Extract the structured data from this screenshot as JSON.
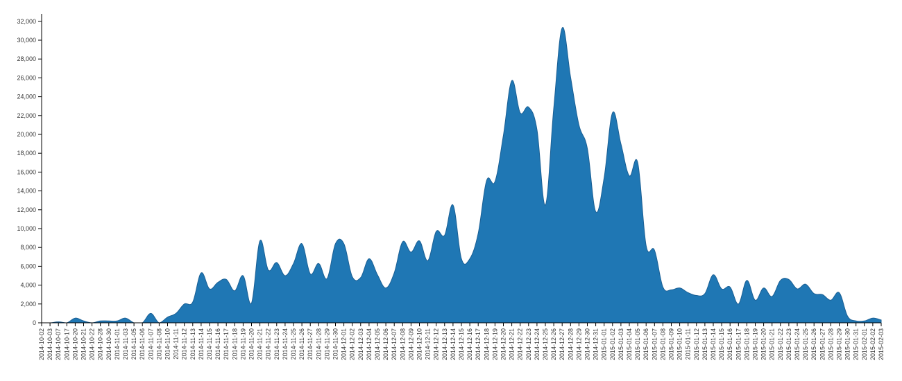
{
  "chart_data": {
    "type": "area",
    "title": "",
    "xlabel": "",
    "ylabel": "",
    "ylim": [
      0,
      32500
    ],
    "y_ticks": [
      0,
      2000,
      4000,
      6000,
      8000,
      10000,
      12000,
      14000,
      16000,
      18000,
      20000,
      22000,
      24000,
      26000,
      28000,
      30000,
      32000
    ],
    "y_tick_labels": [
      "0",
      "2,000",
      "4,000",
      "6,000",
      "8,000",
      "10,000",
      "12,000",
      "14,000",
      "16,000",
      "18,000",
      "20,000",
      "22,000",
      "24,000",
      "26,000",
      "28,000",
      "30,000",
      "32,000"
    ],
    "color": "#1f77b4",
    "grid": false,
    "x": [
      "2014-10-02",
      "2014-10-03",
      "2014-10-07",
      "2014-10-17",
      "2014-10-20",
      "2014-10-21",
      "2014-10-22",
      "2014-10-28",
      "2014-10-30",
      "2014-11-01",
      "2014-11-03",
      "2014-11-05",
      "2014-11-06",
      "2014-11-07",
      "2014-11-08",
      "2014-11-10",
      "2014-11-11",
      "2014-11-12",
      "2014-11-13",
      "2014-11-14",
      "2014-11-15",
      "2014-11-16",
      "2014-11-17",
      "2014-11-18",
      "2014-11-19",
      "2014-11-20",
      "2014-11-21",
      "2014-11-22",
      "2014-11-23",
      "2014-11-24",
      "2014-11-25",
      "2014-11-26",
      "2014-11-27",
      "2014-11-28",
      "2014-11-29",
      "2014-11-30",
      "2014-12-01",
      "2014-12-02",
      "2014-12-03",
      "2014-12-04",
      "2014-12-05",
      "2014-12-06",
      "2014-12-07",
      "2014-12-08",
      "2014-12-09",
      "2014-12-10",
      "2014-12-11",
      "2014-12-12",
      "2014-12-13",
      "2014-12-14",
      "2014-12-15",
      "2014-12-16",
      "2014-12-17",
      "2014-12-18",
      "2014-12-19",
      "2014-12-20",
      "2014-12-21",
      "2014-12-22",
      "2014-12-23",
      "2014-12-24",
      "2014-12-25",
      "2014-12-26",
      "2014-12-27",
      "2014-12-28",
      "2014-12-29",
      "2014-12-30",
      "2014-12-31",
      "2015-01-01",
      "2015-01-02",
      "2015-01-03",
      "2015-01-04",
      "2015-01-05",
      "2015-01-06",
      "2015-01-07",
      "2015-01-08",
      "2015-01-09",
      "2015-01-10",
      "2015-01-11",
      "2015-01-12",
      "2015-01-13",
      "2015-01-14",
      "2015-01-15",
      "2015-01-16",
      "2015-01-17",
      "2015-01-18",
      "2015-01-19",
      "2015-01-20",
      "2015-01-21",
      "2015-01-22",
      "2015-01-23",
      "2015-01-24",
      "2015-01-25",
      "2015-01-26",
      "2015-01-27",
      "2015-01-28",
      "2015-01-29",
      "2015-01-30",
      "2015-01-31",
      "2015-02-01",
      "2015-02-02",
      "2015-02-03"
    ],
    "values": [
      0,
      0,
      100,
      0,
      500,
      200,
      0,
      200,
      200,
      200,
      500,
      0,
      0,
      1000,
      0,
      600,
      1000,
      2000,
      2200,
      5300,
      3600,
      4300,
      4600,
      3400,
      5000,
      2100,
      8700,
      5600,
      6400,
      5000,
      6300,
      8400,
      5200,
      6300,
      4700,
      8400,
      8400,
      4900,
      4800,
      6800,
      5100,
      3700,
      5300,
      8600,
      7500,
      8700,
      6600,
      9700,
      9300,
      12500,
      6800,
      6800,
      9500,
      15100,
      15000,
      19900,
      25700,
      22300,
      22900,
      20500,
      12500,
      22800,
      31300,
      26100,
      21000,
      18500,
      11800,
      15400,
      22300,
      19000,
      15600,
      17000,
      8200,
      7700,
      3800,
      3500,
      3700,
      3200,
      2900,
      3100,
      5100,
      3600,
      3800,
      2000,
      4500,
      2400,
      3700,
      2800,
      4500,
      4600,
      3600,
      4100,
      3100,
      3000,
      2400,
      3200,
      700,
      200,
      200,
      500,
      300
    ]
  }
}
